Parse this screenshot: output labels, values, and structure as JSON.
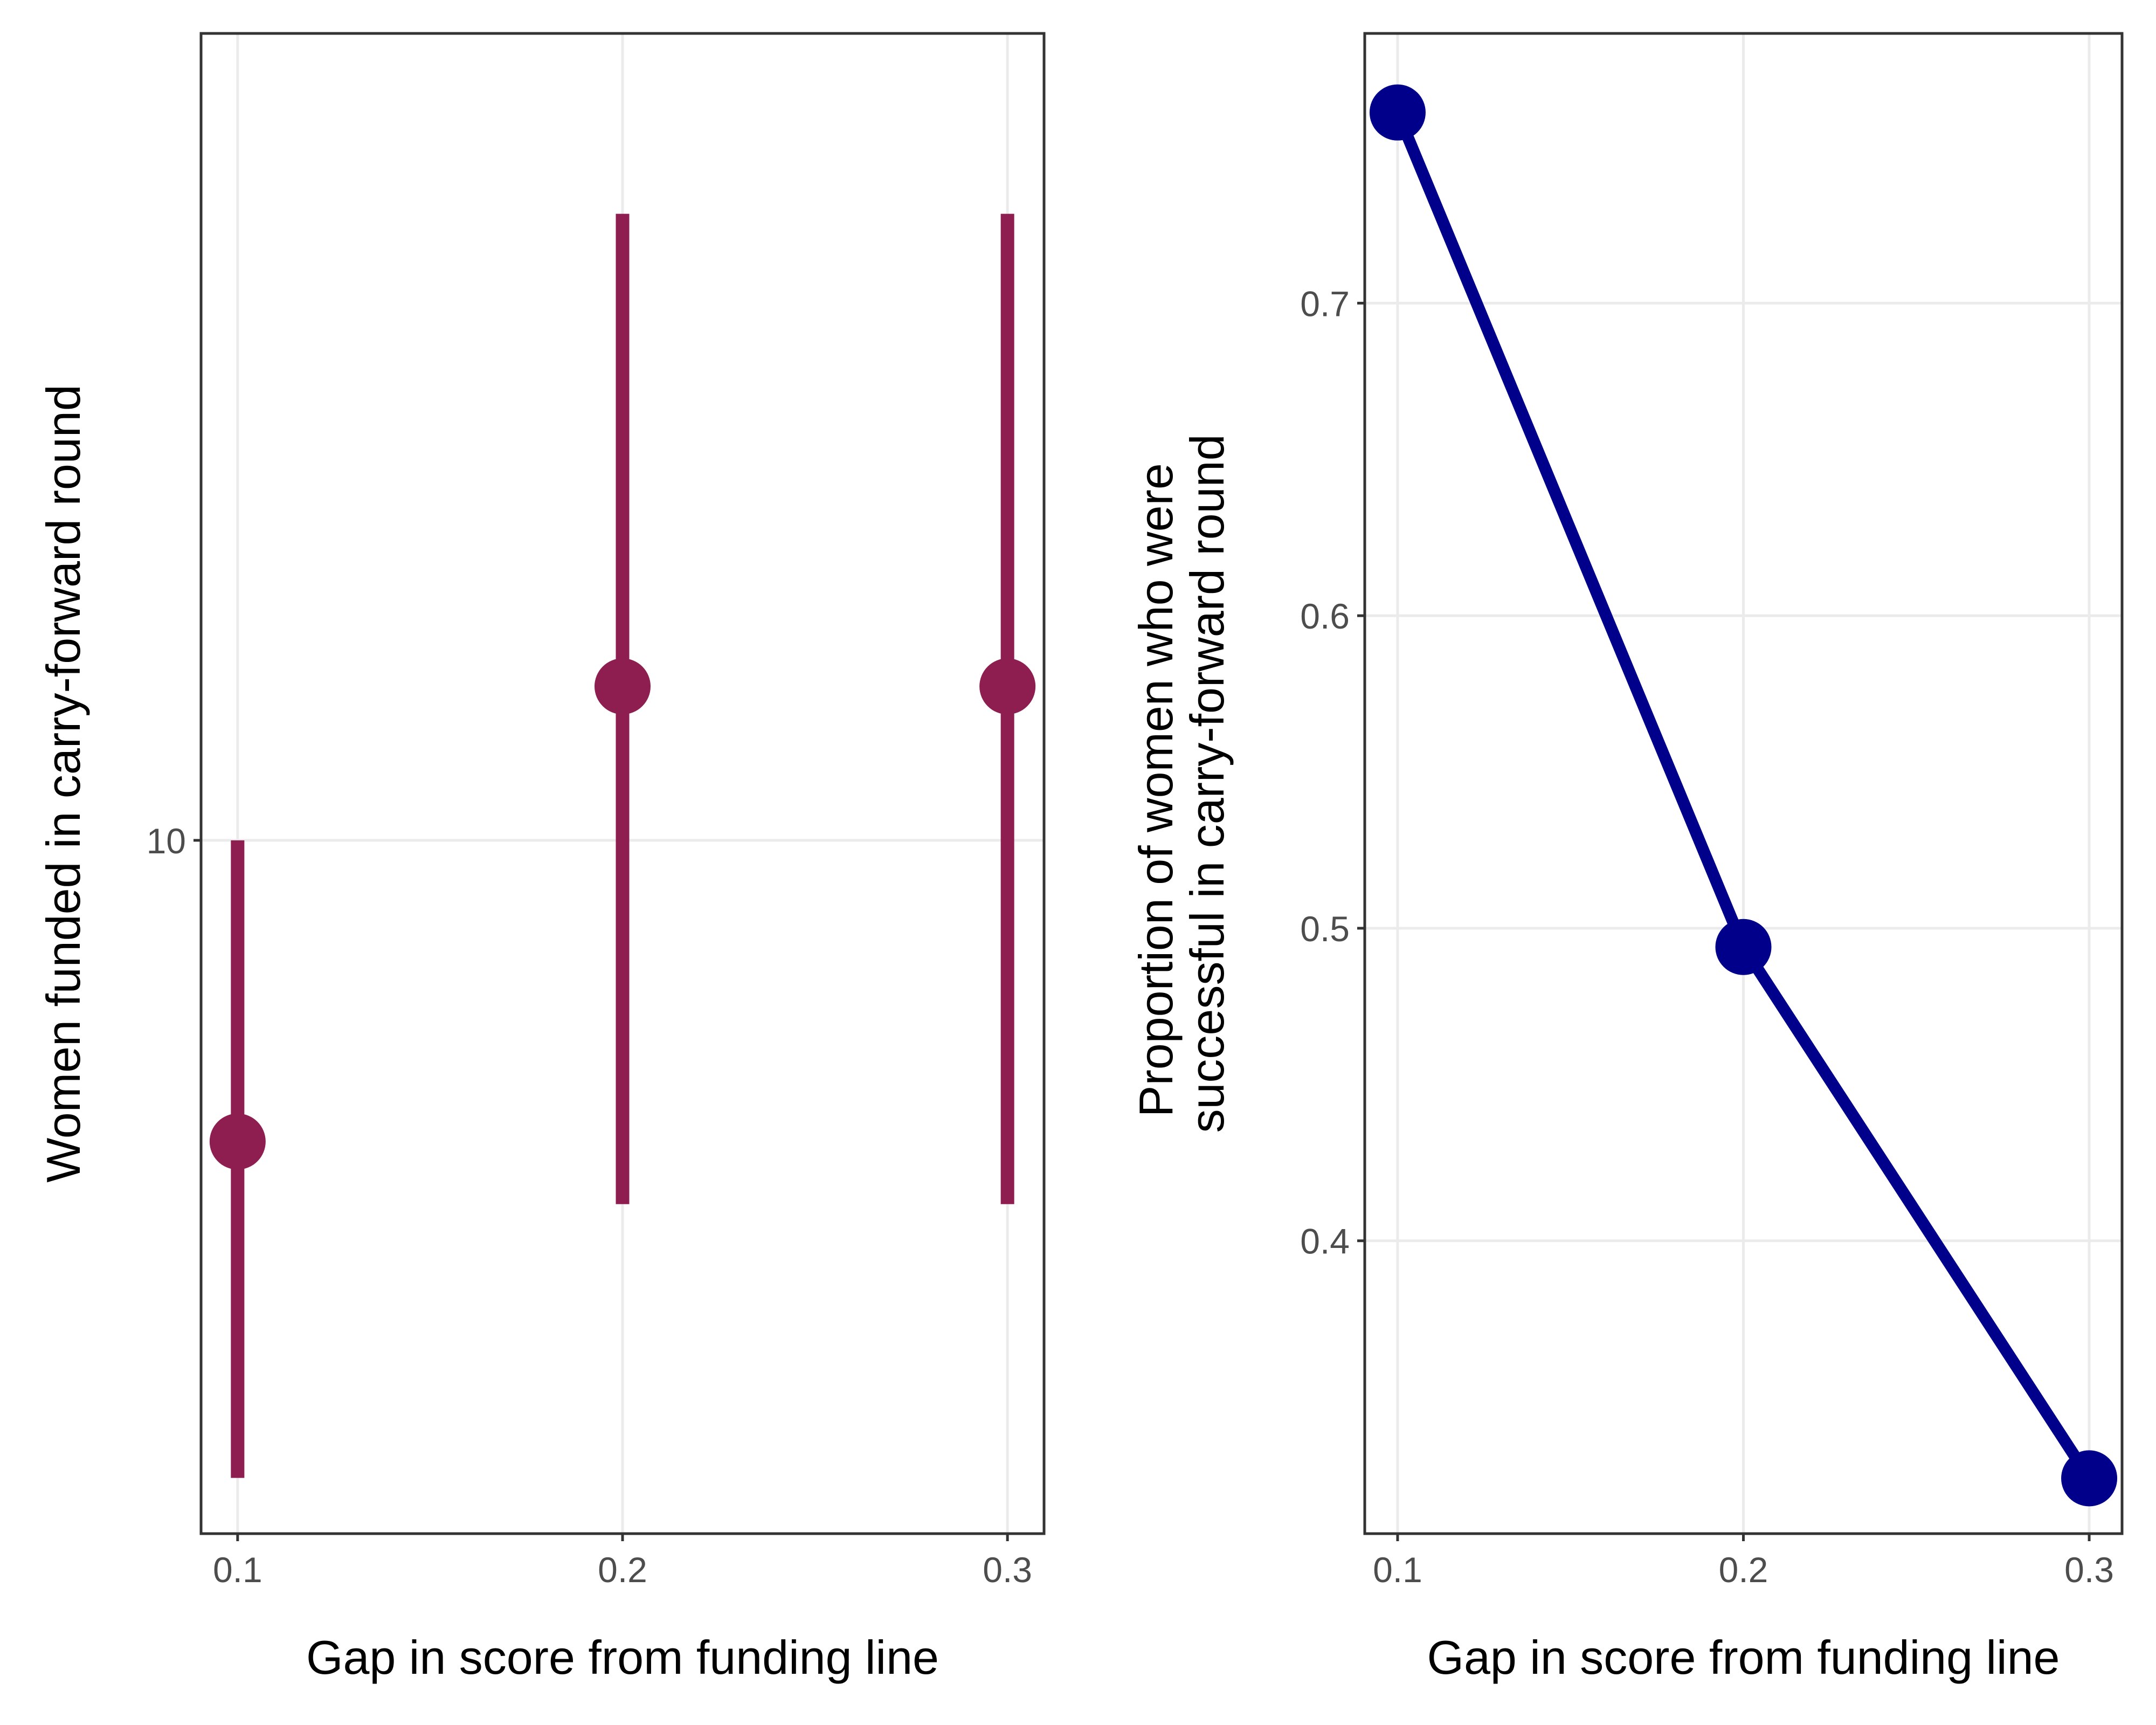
{
  "colors": {
    "left_series": "#8e1e50",
    "right_series": "#00008b",
    "grid": "#ebebeb",
    "panel_border": "#333333",
    "tick_label": "#4d4d4d"
  },
  "chart_data": [
    {
      "type": "scatter",
      "subtype": "pointrange",
      "title": "",
      "xlabel": "Gap in score from funding line",
      "ylabel": "Women funded in carry-forward round",
      "scale_y": "log",
      "x": [
        0.1,
        0.2,
        0.3
      ],
      "x_ticks": [
        "0.1",
        "0.2",
        "0.3"
      ],
      "y_ticks": [
        "10"
      ],
      "xlim": [
        0.0905,
        0.3095
      ],
      "ylim": [
        4.4,
        26.0
      ],
      "grid": true,
      "legend": "none",
      "series": [
        {
          "y": [
            7,
            12,
            12
          ],
          "ymin": [
            4.7,
            6.5,
            6.5
          ],
          "ymax": [
            10,
            21,
            21
          ]
        }
      ]
    },
    {
      "type": "line",
      "title": "",
      "xlabel": "Gap in score from funding line",
      "ylabel": [
        "Proportion of women who were",
        "successful in carry-forward round"
      ],
      "x": [
        0.1,
        0.2,
        0.3
      ],
      "x_ticks": [
        "0.1",
        "0.2",
        "0.3"
      ],
      "y_ticks": [
        "0.4",
        "0.5",
        "0.6",
        "0.7"
      ],
      "xlim": [
        0.0905,
        0.3095
      ],
      "ylim": [
        0.3063,
        0.7863
      ],
      "grid": true,
      "legend": "none",
      "series": [
        {
          "values": [
            0.761,
            0.494,
            0.324
          ],
          "markers": true
        }
      ]
    }
  ]
}
